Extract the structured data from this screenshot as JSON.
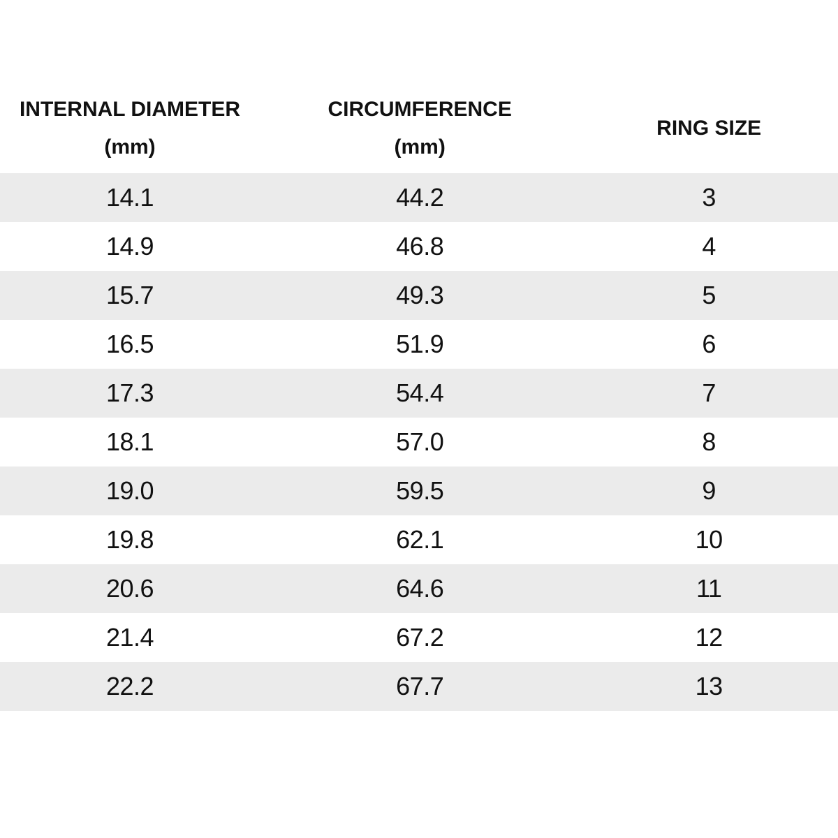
{
  "table": {
    "headers": [
      {
        "title": "INTERNAL DIAMETER",
        "unit": "(mm)"
      },
      {
        "title": "CIRCUMFERENCE",
        "unit": "(mm)"
      },
      {
        "title": "RING SIZE",
        "unit": ""
      }
    ],
    "rows": [
      {
        "internal_diameter_mm": "14.1",
        "circumference_mm": "44.2",
        "ring_size": "3"
      },
      {
        "internal_diameter_mm": "14.9",
        "circumference_mm": "46.8",
        "ring_size": "4"
      },
      {
        "internal_diameter_mm": "15.7",
        "circumference_mm": "49.3",
        "ring_size": "5"
      },
      {
        "internal_diameter_mm": "16.5",
        "circumference_mm": "51.9",
        "ring_size": "6"
      },
      {
        "internal_diameter_mm": "17.3",
        "circumference_mm": "54.4",
        "ring_size": "7"
      },
      {
        "internal_diameter_mm": "18.1",
        "circumference_mm": "57.0",
        "ring_size": "8"
      },
      {
        "internal_diameter_mm": "19.0",
        "circumference_mm": "59.5",
        "ring_size": "9"
      },
      {
        "internal_diameter_mm": "19.8",
        "circumference_mm": "62.1",
        "ring_size": "10"
      },
      {
        "internal_diameter_mm": "20.6",
        "circumference_mm": "64.6",
        "ring_size": "11"
      },
      {
        "internal_diameter_mm": "21.4",
        "circumference_mm": "67.2",
        "ring_size": "12"
      },
      {
        "internal_diameter_mm": "22.2",
        "circumference_mm": "67.7",
        "ring_size": "13"
      }
    ]
  },
  "colors": {
    "row_shade": "#ebebeb",
    "text": "#111111",
    "background": "#ffffff"
  },
  "chart_data": {
    "type": "table",
    "title": "",
    "columns": [
      "INTERNAL DIAMETER (mm)",
      "CIRCUMFERENCE (mm)",
      "RING SIZE"
    ],
    "rows": [
      [
        14.1,
        44.2,
        3
      ],
      [
        14.9,
        46.8,
        4
      ],
      [
        15.7,
        49.3,
        5
      ],
      [
        16.5,
        51.9,
        6
      ],
      [
        17.3,
        54.4,
        7
      ],
      [
        18.1,
        57.0,
        8
      ],
      [
        19.0,
        59.5,
        9
      ],
      [
        19.8,
        62.1,
        10
      ],
      [
        20.6,
        64.6,
        11
      ],
      [
        21.4,
        67.2,
        12
      ],
      [
        22.2,
        67.7,
        13
      ]
    ],
    "layout": {
      "striped_rows": true,
      "first_row_shaded": true,
      "grid": false
    }
  }
}
